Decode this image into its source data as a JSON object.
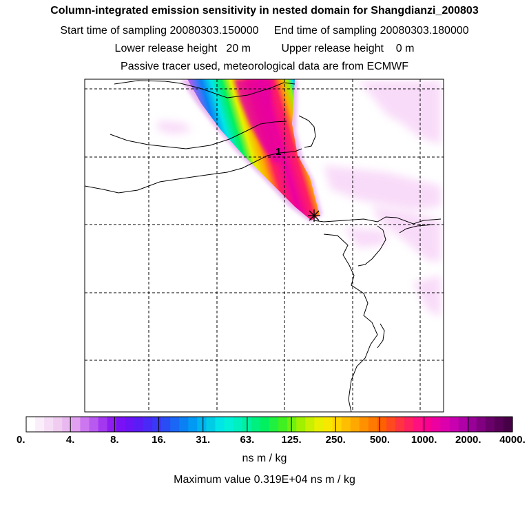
{
  "header": {
    "title": "Column-integrated emission sensitivity in nested domain for Shangdianzi_200803",
    "sampling_line": "Start time of sampling 20080303.150000     End time of sampling 20080303.180000",
    "release_line": "Lower release height   20 m          Upper release height    0 m",
    "tracer_line": "Passive tracer used, meteorological data are from ECMWF"
  },
  "map": {
    "marker_label": "1",
    "receptor_icon": "asterisk-star-icon"
  },
  "colorbar": {
    "tick_labels": [
      "0.",
      "4.",
      "8.",
      "16.",
      "31.",
      "63.",
      "125.",
      "250.",
      "500.",
      "1000.",
      "2000.",
      "4000."
    ],
    "colors": [
      "#ffffff",
      "#fbeefb",
      "#f6ddf6",
      "#f0ccf0",
      "#eab8f0",
      "#e2a0f0",
      "#cc77f0",
      "#b85af0",
      "#a438f0",
      "#8f1cf0",
      "#7a10f5",
      "#6a14f5",
      "#5a1cf5",
      "#4a28f5",
      "#3a38f5",
      "#2a4cf5",
      "#1a66f5",
      "#0a80f5",
      "#009af5",
      "#00b4f0",
      "#00cce6",
      "#00e6e6",
      "#00f0d8",
      "#00f0c0",
      "#00f0a0",
      "#00f080",
      "#00f060",
      "#20f040",
      "#40f020",
      "#70f010",
      "#a0f000",
      "#c8f000",
      "#e8f000",
      "#f8e800",
      "#ffd400",
      "#ffbf00",
      "#ffa800",
      "#ff9000",
      "#ff7a00",
      "#ff6000",
      "#ff4a20",
      "#ff3440",
      "#ff2060",
      "#ff1080",
      "#f80090",
      "#ec00a0",
      "#dc00ac",
      "#c800b0",
      "#b000a8",
      "#980098",
      "#800080",
      "#6a006a",
      "#580058",
      "#460046"
    ],
    "units_label": "ns m / kg",
    "max_label": "Maximum value  0.319E+04 ns m / kg"
  }
}
